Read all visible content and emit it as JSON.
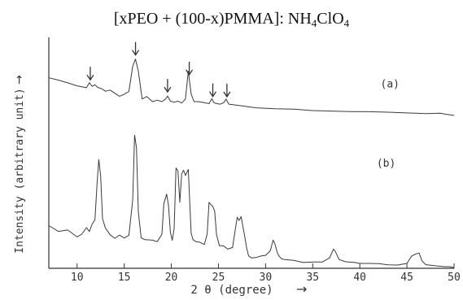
{
  "chart_data": {
    "type": "line",
    "title_parts": {
      "prefix": "[xPEO + (100-x)PMMA]: NH",
      "sub1": "4",
      "mid": "ClO",
      "sub2": "4"
    },
    "xlabel": "2 θ (degree)",
    "ylabel": "Intensity (arbitrary unit)",
    "xlim": [
      7,
      50
    ],
    "x_ticks": [
      "10",
      "15",
      "20",
      "25",
      "30",
      "35",
      "40",
      "45",
      "50"
    ],
    "x_tick_values": [
      10,
      15,
      20,
      25,
      30,
      35,
      40,
      45,
      50
    ],
    "ylim": [
      0,
      100
    ],
    "legend": "none",
    "grid": false,
    "series": [
      {
        "name": "(a)",
        "x": [
          7,
          8,
          9,
          10,
          10.5,
          11,
          11.3,
          11.6,
          11.9,
          12.2,
          12.6,
          13,
          13.5,
          14,
          14.5,
          15,
          15.5,
          15.9,
          16.2,
          16.5,
          16.9,
          17.4,
          18,
          18.5,
          19,
          19.4,
          19.6,
          19.9,
          20.3,
          20.7,
          21.1,
          21.5,
          21.8,
          22.1,
          22.4,
          22.8,
          23.3,
          24,
          24.3,
          24.5,
          24.8,
          25.2,
          25.6,
          25.8,
          26.1,
          26.6,
          27.5,
          29,
          31,
          33,
          35,
          37,
          39,
          41,
          43,
          45,
          47,
          48.5,
          49.2,
          50
        ],
        "y": [
          82.5,
          81.5,
          80.3,
          79,
          78.6,
          78.2,
          80.4,
          78.8,
          79.5,
          78.3,
          77.8,
          76.7,
          77.2,
          75.8,
          74.5,
          75.4,
          76.6,
          87.5,
          90.6,
          85.4,
          73.3,
          74.4,
          72.2,
          72.8,
          72.2,
          73.3,
          74.6,
          72.4,
          71.9,
          72.4,
          71.6,
          73.3,
          85.4,
          75.5,
          72.2,
          72.2,
          71.9,
          71.3,
          73.5,
          71.8,
          71.3,
          71.1,
          71.8,
          73.3,
          71.1,
          70.8,
          70.3,
          69.5,
          69.1,
          68.9,
          68.3,
          68.1,
          67.9,
          67.8,
          67.6,
          67.3,
          67,
          67.2,
          66.7,
          66.2
        ]
      },
      {
        "name": "(b)",
        "x": [
          7,
          8,
          9,
          10,
          10.5,
          11,
          11.3,
          11.6,
          11.9,
          12.1,
          12.3,
          12.5,
          12.7,
          13,
          13.5,
          14,
          14.5,
          15,
          15.5,
          15.9,
          16.1,
          16.3,
          16.5,
          16.8,
          17.2,
          18,
          18.5,
          19,
          19.2,
          19.5,
          19.7,
          19.9,
          20.1,
          20.3,
          20.5,
          20.7,
          20.9,
          21.1,
          21.3,
          21.5,
          21.8,
          22.1,
          22.3,
          22.6,
          23,
          23.5,
          23.8,
          24,
          24.2,
          24.4,
          24.6,
          24.8,
          25.1,
          25.5,
          26,
          26.5,
          26.8,
          27,
          27.2,
          27.4,
          27.7,
          28,
          28.2,
          28.5,
          29,
          29.5,
          30,
          30.5,
          30.8,
          31,
          31.2,
          31.4,
          31.7,
          32,
          33,
          34,
          35,
          36,
          36.8,
          37.2,
          37.4,
          37.8,
          38.5,
          39.5,
          40,
          41,
          42,
          43,
          44,
          45,
          45.5,
          46,
          46.3,
          46.6,
          47,
          48,
          49,
          49.5,
          50
        ],
        "y": [
          18.5,
          16,
          16.6,
          13.6,
          14.8,
          17.6,
          15.9,
          19.2,
          21,
          35.6,
          47.1,
          40,
          21.5,
          17.5,
          14.5,
          13,
          14.4,
          13.1,
          14.3,
          29.6,
          57.7,
          52.3,
          24.5,
          13.2,
          12.4,
          12.2,
          11.5,
          14.8,
          27.9,
          32.1,
          27.2,
          15.5,
          12.1,
          17.2,
          43.4,
          42.1,
          28.6,
          40.9,
          42.5,
          40.2,
          42.8,
          15.2,
          12.4,
          11.6,
          11.3,
          10.3,
          14.8,
          28.6,
          27.6,
          26.8,
          24.8,
          14.6,
          9.8,
          9.8,
          8.3,
          9,
          17.2,
          22.1,
          20.7,
          22.4,
          15.9,
          8.7,
          5.4,
          4.5,
          4.7,
          5.3,
          5.6,
          7.6,
          12.2,
          10.5,
          7.3,
          5.4,
          4.1,
          3.8,
          3.4,
          2.5,
          2.7,
          2.7,
          4.5,
          8.3,
          7.3,
          3.8,
          2.8,
          2.5,
          2.1,
          2.1,
          2,
          1.5,
          1.4,
          2.1,
          5.3,
          6.3,
          6.6,
          3.2,
          1.6,
          1.1,
          0.7,
          0.7,
          0.3
        ]
      }
    ],
    "annotations": [
      {
        "text": "(a)",
        "x": 43.2,
        "y": 78.3
      },
      {
        "text": "(b)",
        "x": 42.8,
        "y": 44
      }
    ],
    "peak_arrows_a": [
      11.4,
      16.2,
      19.6,
      21.9,
      24.4,
      25.9
    ]
  }
}
